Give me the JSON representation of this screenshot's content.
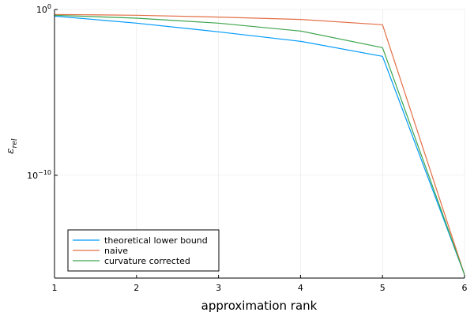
{
  "chart_data": {
    "type": "line",
    "title": "",
    "xlabel": "approximation rank",
    "ylabel_base": "ε",
    "ylabel_sub": "rel",
    "xscale": "linear",
    "yscale": "log10",
    "xlim": [
      1,
      6
    ],
    "ylim_log10": [
      -16.2,
      0
    ],
    "xticks": [
      1,
      2,
      3,
      4,
      5,
      6
    ],
    "yticks": [
      {
        "value": 1,
        "base": "10",
        "exp": "0"
      },
      {
        "value": 1e-10,
        "base": "10",
        "exp": "−10"
      }
    ],
    "grid": true,
    "legend_position": "bottom-left",
    "series": [
      {
        "name": "theoretical lower bound",
        "color": "#009AFA",
        "x": [
          1,
          2,
          3,
          4,
          5,
          6
        ],
        "y": [
          0.4,
          0.15,
          0.045,
          0.012,
          0.0015,
          1e-16
        ]
      },
      {
        "name": "naive",
        "color": "#E26F46",
        "x": [
          1,
          2,
          3,
          4,
          5,
          6
        ],
        "y": [
          0.5,
          0.45,
          0.35,
          0.25,
          0.12,
          1e-16
        ]
      },
      {
        "name": "curvature corrected",
        "color": "#3DA44D",
        "x": [
          1,
          2,
          3,
          4,
          5,
          6
        ],
        "y": [
          0.45,
          0.3,
          0.15,
          0.05,
          0.005,
          1e-16
        ]
      }
    ]
  }
}
